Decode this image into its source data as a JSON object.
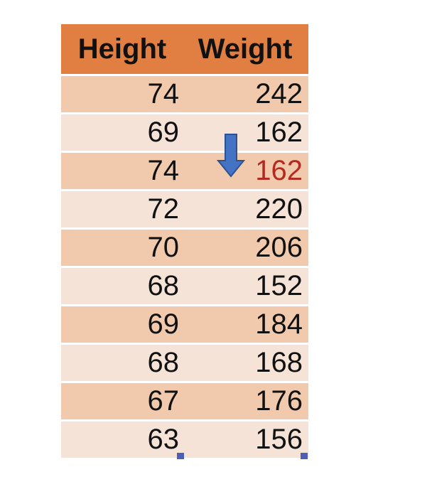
{
  "table": {
    "headers": [
      "Height",
      "Weight"
    ],
    "rows": [
      {
        "height": "74",
        "weight": "242"
      },
      {
        "height": "69",
        "weight": "162"
      },
      {
        "height": "74",
        "weight": "162"
      },
      {
        "height": "72",
        "weight": "220"
      },
      {
        "height": "70",
        "weight": "206"
      },
      {
        "height": "68",
        "weight": "152"
      },
      {
        "height": "69",
        "weight": "184"
      },
      {
        "height": "68",
        "weight": "168"
      },
      {
        "height": "67",
        "weight": "176"
      },
      {
        "height": "63",
        "weight": "156"
      }
    ],
    "highlight_color": "#b52a20",
    "header_color": "#e07f41",
    "band_colors": [
      "#f1c9ac",
      "#f6e3d8"
    ]
  },
  "arrow": {
    "icon": "down-arrow-icon",
    "color": "#4472c4"
  }
}
